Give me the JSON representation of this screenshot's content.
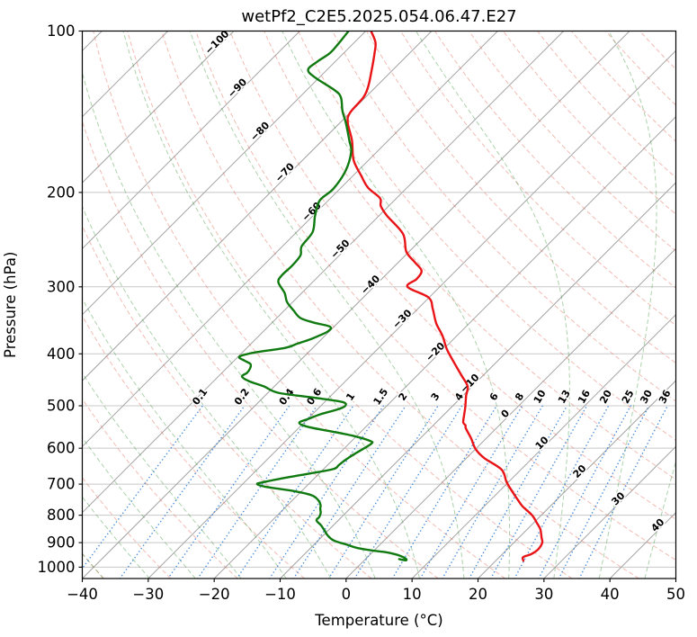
{
  "chart_data": {
    "type": "line",
    "variant": "skew-t-log-p-sounding",
    "title": "wetPf2_C2E5.2025.054.06.47.E27",
    "xlabel": "Temperature (°C)",
    "ylabel": "Pressure (hPa)",
    "xlim": [
      -40,
      50
    ],
    "xticks": [
      -40,
      -30,
      -20,
      -10,
      0,
      10,
      20,
      30,
      40,
      50
    ],
    "pressure_ticks_hpa": [
      100,
      200,
      300,
      400,
      500,
      600,
      700,
      800,
      900,
      1000
    ],
    "pressure_lim_hpa": [
      1050,
      100
    ],
    "skew_degrees": 45,
    "grid": "horizontal pressure gridlines on",
    "legend_position": "none",
    "isotherms_c": {
      "min": -160,
      "max": 50,
      "step": 10
    },
    "isotherm_labels_c": [
      -100,
      -90,
      -80,
      -70,
      -60,
      -50,
      -40,
      -30,
      -20,
      -10,
      0,
      10,
      20,
      30,
      40
    ],
    "isotherm_label_anchor_theta_k": 328.6,
    "dry_adiabats_theta_c": {
      "min": -40,
      "max": 260,
      "step": 10
    },
    "moist_adiabats_start_c": [
      -68,
      -61,
      -54,
      -47,
      -40,
      -33,
      -26,
      -19,
      -12,
      -5,
      2,
      9,
      16,
      23,
      30,
      37,
      44
    ],
    "mixing_ratio_lines_g_per_kg": [
      0.1,
      0.2,
      0.4,
      0.6,
      1,
      1.5,
      2,
      3,
      4,
      6,
      8,
      10,
      13,
      16,
      20,
      25,
      30,
      36
    ],
    "mixing_ratio_labels": [
      "0.1",
      "0.2",
      "0.4",
      "0.6",
      "1",
      "1.5",
      "2",
      "3",
      "4",
      "6",
      "8",
      "10",
      "13",
      "16",
      "20",
      "25",
      "30",
      "36"
    ],
    "mixing_ratio_top_hpa": 500,
    "series": [
      {
        "name": "temperature",
        "color": "#e81417",
        "points_p_t": [
          [
            100,
            -79.2
          ],
          [
            105,
            -76.8
          ],
          [
            110,
            -75.3
          ],
          [
            119,
            -73.0
          ],
          [
            127,
            -71.2
          ],
          [
            133,
            -70.3
          ],
          [
            142,
            -70.0
          ],
          [
            148,
            -68.9
          ],
          [
            160,
            -65.5
          ],
          [
            174,
            -62.3
          ],
          [
            186,
            -58.8
          ],
          [
            196,
            -55.9
          ],
          [
            205,
            -52.5
          ],
          [
            212,
            -51.2
          ],
          [
            221,
            -48.8
          ],
          [
            239,
            -43.6
          ],
          [
            258,
            -40.4
          ],
          [
            270,
            -37.5
          ],
          [
            280,
            -35.2
          ],
          [
            290,
            -34.7
          ],
          [
            300,
            -34.9
          ],
          [
            314,
            -30.1
          ],
          [
            330,
            -27.7
          ],
          [
            351,
            -25.0
          ],
          [
            370,
            -22.2
          ],
          [
            392,
            -19.5
          ],
          [
            415,
            -16.4
          ],
          [
            438,
            -13.4
          ],
          [
            460,
            -10.7
          ],
          [
            479,
            -9.5
          ],
          [
            503,
            -7.9
          ],
          [
            520,
            -6.9
          ],
          [
            537,
            -5.9
          ],
          [
            544,
            -5.1
          ],
          [
            551,
            -4.6
          ],
          [
            575,
            -2.3
          ],
          [
            602,
            0.0
          ],
          [
            626,
            2.7
          ],
          [
            658,
            7.1
          ],
          [
            695,
            9.8
          ],
          [
            730,
            12.6
          ],
          [
            750,
            14.2
          ],
          [
            770,
            15.8
          ],
          [
            800,
            18.6
          ],
          [
            830,
            20.7
          ],
          [
            850,
            22.0
          ],
          [
            880,
            23.4
          ],
          [
            900,
            24.3
          ],
          [
            925,
            24.7
          ],
          [
            945,
            24.4
          ],
          [
            958,
            23.6
          ],
          [
            973,
            24.2
          ]
        ]
      },
      {
        "name": "dewpoint",
        "color": "#107a11",
        "points_p_t": [
          [
            100,
            -82.6
          ],
          [
            106,
            -82.2
          ],
          [
            110,
            -82.1
          ],
          [
            114,
            -82.7
          ],
          [
            118,
            -82.9
          ],
          [
            122,
            -80.7
          ],
          [
            129,
            -75.7
          ],
          [
            133,
            -73.7
          ],
          [
            141,
            -71.4
          ],
          [
            148,
            -69.2
          ],
          [
            160,
            -65.9
          ],
          [
            168,
            -63.9
          ],
          [
            182,
            -61.9
          ],
          [
            197,
            -61.0
          ],
          [
            207,
            -61.3
          ],
          [
            221,
            -59.7
          ],
          [
            237,
            -57.6
          ],
          [
            252,
            -57.1
          ],
          [
            262,
            -55.9
          ],
          [
            274,
            -55.6
          ],
          [
            285,
            -55.7
          ],
          [
            294,
            -55.2
          ],
          [
            308,
            -52.6
          ],
          [
            320,
            -50.9
          ],
          [
            332,
            -48.6
          ],
          [
            343,
            -46.4
          ],
          [
            350,
            -43.6
          ],
          [
            356,
            -40.6
          ],
          [
            363,
            -40.2
          ],
          [
            370,
            -40.9
          ],
          [
            376,
            -41.7
          ],
          [
            383,
            -43.0
          ],
          [
            390,
            -44.2
          ],
          [
            398,
            -48.2
          ],
          [
            405,
            -49.8
          ],
          [
            412,
            -48.4
          ],
          [
            418,
            -47.0
          ],
          [
            426,
            -46.4
          ],
          [
            434,
            -46.2
          ],
          [
            441,
            -46.4
          ],
          [
            450,
            -44.6
          ],
          [
            460,
            -41.6
          ],
          [
            473,
            -38.4
          ],
          [
            483,
            -32.2
          ],
          [
            492,
            -27.3
          ],
          [
            501,
            -26.3
          ],
          [
            509,
            -27.1
          ],
          [
            518,
            -28.7
          ],
          [
            528,
            -29.8
          ],
          [
            538,
            -30.7
          ],
          [
            548,
            -28.6
          ],
          [
            558,
            -24.6
          ],
          [
            570,
            -20.2
          ],
          [
            582,
            -17.1
          ],
          [
            588,
            -16.6
          ],
          [
            600,
            -17.0
          ],
          [
            615,
            -17.6
          ],
          [
            632,
            -18.1
          ],
          [
            645,
            -18.3
          ],
          [
            656,
            -18.5
          ],
          [
            668,
            -21.2
          ],
          [
            680,
            -24.2
          ],
          [
            694,
            -27.1
          ],
          [
            700,
            -27.8
          ],
          [
            708,
            -26.1
          ],
          [
            720,
            -21.6
          ],
          [
            734,
            -17.9
          ],
          [
            750,
            -16.1
          ],
          [
            766,
            -15.0
          ],
          [
            778,
            -14.5
          ],
          [
            792,
            -13.8
          ],
          [
            806,
            -13.4
          ],
          [
            818,
            -13.3
          ],
          [
            835,
            -11.9
          ],
          [
            855,
            -10.5
          ],
          [
            873,
            -9.3
          ],
          [
            892,
            -7.6
          ],
          [
            908,
            -5.0
          ],
          [
            920,
            -3.1
          ],
          [
            930,
            -0.6
          ],
          [
            938,
            2.1
          ],
          [
            948,
            4.1
          ],
          [
            956,
            5.2
          ],
          [
            965,
            6.1
          ],
          [
            971,
            6.3
          ],
          [
            966,
            5.1
          ]
        ]
      }
    ],
    "colors": {
      "isotherm": "#a3a3a3",
      "pressure_grid": "#c8c8c8",
      "dry_adiabat": "#e0604a",
      "moist_adiabat": "#2f8f2f",
      "mixing_ratio": "#2f7cd6",
      "cold_isotherm_label": "#2a7ccc",
      "zero_isotherm_label": "#7a7a7a",
      "warm_isotherm_label": "#c03030",
      "temperature_curve": "#e81417",
      "dewpoint_curve": "#107a11",
      "axis_text": "#000000"
    }
  }
}
